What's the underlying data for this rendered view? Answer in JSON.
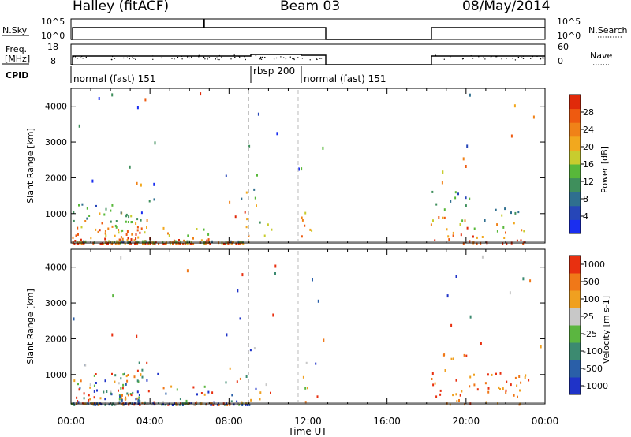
{
  "header": {
    "station": "Halley (fitACF)",
    "beam": "Beam 03",
    "date": "08/May/2014"
  },
  "top_panels": {
    "nsky": {
      "label": "N.Sky",
      "ticks": [
        "10^5",
        "10^0"
      ]
    },
    "nsearch": {
      "label": "N.Search",
      "ticks": [
        "10^5",
        "10^0"
      ]
    },
    "freq": {
      "label": "Freq.",
      "unit": "[MHz]",
      "ticks": [
        "18",
        "8"
      ]
    },
    "nave": {
      "label": "Nave",
      "ticks": [
        "60",
        "0"
      ]
    },
    "cpid": {
      "label": "CPID",
      "segments": [
        {
          "name": "normal (fast) 151",
          "start_h": 0,
          "end_h": 9
        },
        {
          "name": "rbsp 200",
          "start_h": 9,
          "end_h": 11.5
        },
        {
          "name": "normal (fast) 151",
          "start_h": 11.5,
          "end_h": 24
        }
      ]
    }
  },
  "chart_data": [
    {
      "type": "heatmap",
      "title": "",
      "xlabel": "",
      "ylabel": "Slant Range [km]",
      "xlim": [
        0,
        24
      ],
      "ylim": [
        180,
        4500
      ],
      "yticks": [
        1000,
        2000,
        3000,
        4000
      ],
      "colorbar": {
        "label": "Power [dB]",
        "range": [
          0,
          32
        ],
        "ticks": [
          "4",
          "8",
          "12",
          "16",
          "20",
          "24",
          "28"
        ],
        "colors": [
          "#1a2ef0",
          "#2646b8",
          "#2f6f8f",
          "#3f8f5c",
          "#58b83a",
          "#c8cc2e",
          "#f2a81e",
          "#f08218",
          "#ee5a10",
          "#e02a0a"
        ]
      },
      "data_gaps_h": [
        [
          13,
          18.2
        ]
      ]
    },
    {
      "type": "heatmap",
      "title": "",
      "xlabel": "Time UT",
      "ylabel": "Slant Range [km]",
      "xlim": [
        0,
        24
      ],
      "ylim": [
        180,
        4500
      ],
      "yticks": [
        1000,
        2000,
        3000,
        4000
      ],
      "xticks": [
        "00:00",
        "04:00",
        "08:00",
        "12:00",
        "16:00",
        "20:00",
        "00:00"
      ],
      "colorbar": {
        "label": "Velocity [m s-1]",
        "ticks": [
          "1000",
          "500",
          "100",
          "25",
          "-25",
          "-100",
          "-500",
          "-1000"
        ],
        "colors": [
          "#1f33c8",
          "#2a5fa8",
          "#3c8a70",
          "#5bb640",
          "#c8c8c8",
          "#f0a020",
          "#f07818",
          "#e83010"
        ]
      },
      "data_gaps_h": [
        [
          13,
          18.2
        ]
      ]
    }
  ]
}
